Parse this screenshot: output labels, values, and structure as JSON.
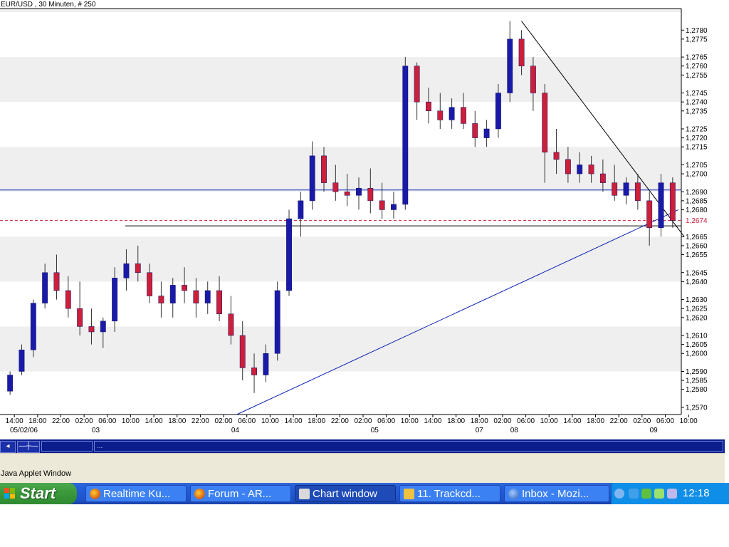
{
  "window": {
    "chart_title": "EUR/USD , 30 Minuten, # 250",
    "status_text": "Java Applet Window"
  },
  "toolbar": {
    "left_button": "◂",
    "crosshair_button": "—┼—",
    "field_text": "..."
  },
  "taskbar": {
    "start_label": "Start",
    "items": [
      {
        "label": "Realtime Ku...",
        "icon": "firefox-icon"
      },
      {
        "label": "Forum - AR...",
        "icon": "firefox-icon"
      },
      {
        "label": "Chart window",
        "icon": "java-icon"
      },
      {
        "label": "11. Trackcd...",
        "icon": "app-icon"
      },
      {
        "label": "Inbox - Mozi...",
        "icon": "thunderbird-icon"
      }
    ],
    "clock": "12:18"
  },
  "colors": {
    "bull_candle": "#1a1aa8",
    "bear_candle": "#cc1f3a",
    "trendline": "#0b22b3",
    "price_line": "#cc1f3a",
    "band": "#efefef"
  },
  "chart_data": {
    "type": "candlestick",
    "title": "EUR/USD , 30 Minuten, # 250",
    "ylim": [
      1.2566,
      1.2792
    ],
    "yticks": [
      "1,2780",
      "1,2775",
      "1,2765",
      "1,2760",
      "1,2755",
      "1,2745",
      "1,2740",
      "1,2735",
      "1,2725",
      "1,2720",
      "1,2715",
      "1,2705",
      "1,2700",
      "1,2690",
      "1,2685",
      "1,2680",
      "1,2665",
      "1,2660",
      "1,2655",
      "1,2645",
      "1,2640",
      "1,2630",
      "1,2625",
      "1,2620",
      "1,2610",
      "1,2605",
      "1,2600",
      "1,2590",
      "1,2585",
      "1,2580",
      "1,2570"
    ],
    "current_price_label": "1,2674",
    "current_price": 1.2674,
    "time_labels": [
      "14:00",
      "18:00",
      "22:00",
      "02:00",
      "06:00",
      "10:00",
      "14:00",
      "18:00",
      "22:00",
      "02:00",
      "06:00",
      "10:00",
      "14:00",
      "18:00",
      "22:00",
      "02:00",
      "06:00",
      "10:00",
      "14:00",
      "18:00",
      "18:00",
      "02:00",
      "06:00",
      "10:00",
      "14:00",
      "18:00",
      "22:00",
      "02:00",
      "06:00",
      "10:00"
    ],
    "time_positions": [
      0,
      2,
      4,
      6,
      8,
      10,
      12,
      14,
      16,
      18,
      20,
      22,
      24,
      26,
      28,
      30,
      32,
      34,
      36,
      38,
      40,
      42,
      44,
      46,
      48,
      50,
      52,
      54,
      56,
      58
    ],
    "date_labels": [
      {
        "text": "05/02/06",
        "index": 0
      },
      {
        "text": "03",
        "index": 7
      },
      {
        "text": "04",
        "index": 19
      },
      {
        "text": "05",
        "index": 31
      },
      {
        "text": "07",
        "index": 40
      },
      {
        "text": "08",
        "index": 43
      },
      {
        "text": "09",
        "index": 55
      }
    ],
    "candles": [
      [
        1.2579,
        1.259,
        1.2577,
        1.2588
      ],
      [
        1.259,
        1.2605,
        1.2588,
        1.2602
      ],
      [
        1.2602,
        1.263,
        1.2598,
        1.2628
      ],
      [
        1.2628,
        1.265,
        1.2625,
        1.2645
      ],
      [
        1.2645,
        1.2655,
        1.263,
        1.2635
      ],
      [
        1.2635,
        1.2643,
        1.262,
        1.2625
      ],
      [
        1.2625,
        1.264,
        1.261,
        1.2615
      ],
      [
        1.2615,
        1.2625,
        1.2605,
        1.2612
      ],
      [
        1.2612,
        1.262,
        1.2603,
        1.2618
      ],
      [
        1.2618,
        1.2648,
        1.2612,
        1.2642
      ],
      [
        1.2642,
        1.2658,
        1.2635,
        1.265
      ],
      [
        1.265,
        1.266,
        1.264,
        1.2645
      ],
      [
        1.2645,
        1.265,
        1.2628,
        1.2632
      ],
      [
        1.2632,
        1.264,
        1.262,
        1.2628
      ],
      [
        1.2628,
        1.2642,
        1.262,
        1.2638
      ],
      [
        1.2638,
        1.2648,
        1.2628,
        1.2635
      ],
      [
        1.2635,
        1.2642,
        1.262,
        1.2628
      ],
      [
        1.2628,
        1.264,
        1.2622,
        1.2635
      ],
      [
        1.2635,
        1.2643,
        1.2618,
        1.2622
      ],
      [
        1.2622,
        1.2632,
        1.2605,
        1.261
      ],
      [
        1.261,
        1.2618,
        1.2585,
        1.2592
      ],
      [
        1.2592,
        1.26,
        1.2578,
        1.2588
      ],
      [
        1.2588,
        1.2605,
        1.2584,
        1.26
      ],
      [
        1.26,
        1.264,
        1.2596,
        1.2635
      ],
      [
        1.2635,
        1.268,
        1.2632,
        1.2675
      ],
      [
        1.2675,
        1.269,
        1.2665,
        1.2685
      ],
      [
        1.2685,
        1.2718,
        1.268,
        1.271
      ],
      [
        1.271,
        1.2715,
        1.269,
        1.2695
      ],
      [
        1.2695,
        1.2705,
        1.2685,
        1.269
      ],
      [
        1.269,
        1.27,
        1.2682,
        1.2688
      ],
      [
        1.2688,
        1.2698,
        1.268,
        1.2692
      ],
      [
        1.2692,
        1.2703,
        1.2678,
        1.2685
      ],
      [
        1.2685,
        1.2695,
        1.2675,
        1.268
      ],
      [
        1.268,
        1.269,
        1.2675,
        1.2683
      ],
      [
        1.2683,
        1.2765,
        1.268,
        1.276
      ],
      [
        1.276,
        1.2762,
        1.273,
        1.274
      ],
      [
        1.274,
        1.2748,
        1.2728,
        1.2735
      ],
      [
        1.2735,
        1.2745,
        1.2725,
        1.273
      ],
      [
        1.273,
        1.2742,
        1.2725,
        1.2737
      ],
      [
        1.2737,
        1.2745,
        1.2725,
        1.2728
      ],
      [
        1.2728,
        1.2735,
        1.2715,
        1.272
      ],
      [
        1.272,
        1.273,
        1.2715,
        1.2725
      ],
      [
        1.2725,
        1.275,
        1.272,
        1.2745
      ],
      [
        1.2745,
        1.2785,
        1.274,
        1.2775
      ],
      [
        1.2775,
        1.278,
        1.2755,
        1.276
      ],
      [
        1.276,
        1.2765,
        1.2735,
        1.2745
      ],
      [
        1.2745,
        1.275,
        1.2695,
        1.2712
      ],
      [
        1.2712,
        1.2725,
        1.27,
        1.2708
      ],
      [
        1.2708,
        1.2715,
        1.2695,
        1.27
      ],
      [
        1.27,
        1.2712,
        1.2695,
        1.2705
      ],
      [
        1.2705,
        1.271,
        1.2695,
        1.27
      ],
      [
        1.27,
        1.2708,
        1.269,
        1.2695
      ],
      [
        1.2695,
        1.2705,
        1.2685,
        1.2688
      ],
      [
        1.2688,
        1.2698,
        1.2683,
        1.2695
      ],
      [
        1.2695,
        1.27,
        1.268,
        1.2685
      ],
      [
        1.2685,
        1.269,
        1.266,
        1.267
      ],
      [
        1.267,
        1.27,
        1.2665,
        1.2695
      ],
      [
        1.2695,
        1.2698,
        1.267,
        1.2674
      ]
    ],
    "hlines": [
      1.2691,
      1.2671
    ],
    "trendlines": [
      {
        "from": [
          19.5,
          1.2566
        ],
        "to": [
          57.5,
          1.268
        ],
        "color": "#0b22b3"
      },
      {
        "from": [
          44.0,
          1.2785
        ],
        "to": [
          58.0,
          1.2665
        ],
        "color": "#000000"
      }
    ]
  }
}
